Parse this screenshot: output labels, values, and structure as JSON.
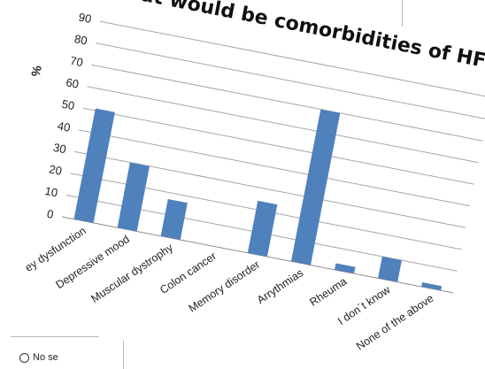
{
  "chart_data": {
    "type": "bar",
    "title": "What would be comorbidities of HF",
    "ylabel": "%",
    "xlabel": "",
    "ylim": [
      0,
      90
    ],
    "yticks": [
      0,
      10,
      20,
      30,
      40,
      50,
      60,
      70,
      80,
      90
    ],
    "categories": [
      "Kidney dysfunction",
      "Depressive mood",
      "Muscular dystrophy",
      "Colon cancer",
      "Memory disorder",
      "Arrythmias",
      "Rheuma",
      "I don´t know",
      "None of the above"
    ],
    "visible_category_text": [
      "ey dysfunction",
      "Depressive mood",
      "Muscular dystrophy",
      "Colon cancer",
      "Memory disorder",
      "Arrythmias",
      "Rheuma",
      "I don´t know",
      "None of the above"
    ],
    "values": [
      51,
      30,
      17,
      0,
      24,
      70,
      3,
      10,
      2
    ],
    "bar_color": "#4f81bd",
    "grid": true,
    "legend": "none"
  },
  "form": {
    "option_label": "No se"
  }
}
